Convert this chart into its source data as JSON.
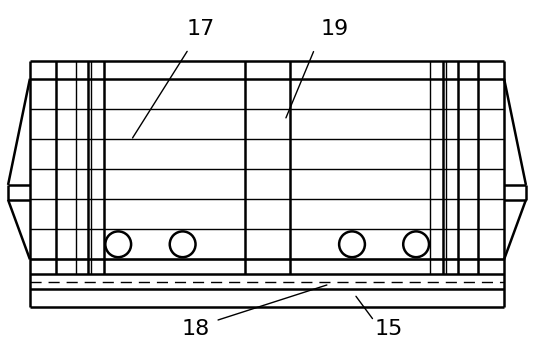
{
  "figsize": [
    5.34,
    3.51
  ],
  "dpi": 100,
  "bg_color": "#ffffff",
  "line_color": "#000000",
  "lw_thick": 1.8,
  "lw_thin": 1.0,
  "label_fontsize": 16
}
